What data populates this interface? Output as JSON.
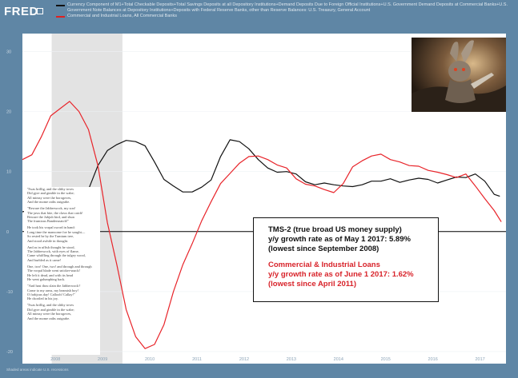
{
  "header": {
    "logo": "FRED",
    "legend": [
      {
        "label": "Currency Component of M1+Total Checkable Deposits+Total Savings Deposits at all Depository Institutions+Demand Deposits Due to Foreign Official Institutions+U.S. Government Demand Deposits at Commercial Banks+U.S. Government Note Balances at Depository Institutions+Deposits with Federal Reserve Banks, other than Reserve Balances: U.S. Treasury, General Account",
        "color": "#111111"
      },
      {
        "label": "Commercial and Industrial Loans, All Commercial Banks",
        "color": "#e02020"
      }
    ]
  },
  "footer": {
    "source": "Shaded areas indicate U.S. recessions"
  },
  "poem": [
    "'Twas brillig, and the slithy toves\nDid gyre and gimble in the wabe;\nAll mimsy were the borogoves,\nAnd the mome raths outgrabe.",
    "\"Beware the Jabberwock, my son!\nThe jaws that bite, the claws that catch!\nBeware the Jubjub bird, and shun\nThe frumious Bandersnatch!\"",
    "He took his vorpal sword in hand:\nLong time the manxome foe he sought—\nSo rested he by the Tumtum tree,\nAnd stood awhile in thought.",
    "And as in uffish thought he stood,\nThe Jabberwock, with eyes of flame,\nCame whiffling through the tulgey wood,\nAnd burbled as it came!",
    "One, two! One, two! and through and through\nThe vorpal blade went snicker-snack!\nHe left it dead, and with its head\nHe went galumphing back.",
    "\"And hast thou slain the Jabberwock?\nCome to my arms, my beamish boy!\nO frabjous day! Callooh! Callay!\"\nHe chortled in his joy.",
    "'Twas brillig, and the slithy toves\nDid gyre and gimble in the wabe;\nAll mimsy were the borogoves,\nAnd the mome raths outgrabe."
  ],
  "annotation": {
    "tms_lines": [
      "TMS-2 (true broad US money supply)",
      "y/y growth rate as of May 1 2017: 5.89%",
      "(lowest since September 2008)"
    ],
    "ci_lines": [
      "Commercial & Industrial Loans",
      "y/y growth rate as of June 1 2017: 1.62%",
      "(lowest since April 2011)"
    ]
  },
  "chart_data": {
    "type": "line",
    "title": "",
    "xlabel": "",
    "ylabel": "",
    "xlim": [
      2007.3,
      2017.55
    ],
    "ylim": [
      -22,
      33
    ],
    "y_ticks": [
      30,
      20,
      10,
      0,
      -10,
      -20
    ],
    "x_ticks": [
      2008,
      2009,
      2010,
      2011,
      2012,
      2013,
      2014,
      2015,
      2016,
      2017
    ],
    "recession": [
      2007.92,
      2009.42
    ],
    "zero_line": 0,
    "series": [
      {
        "name": "TMS-2",
        "color": "#111111",
        "x": [
          2007.3,
          2007.5,
          2007.7,
          2007.9,
          2008.1,
          2008.3,
          2008.5,
          2008.7,
          2008.9,
          2009.1,
          2009.3,
          2009.5,
          2009.7,
          2009.9,
          2010.1,
          2010.3,
          2010.5,
          2010.7,
          2010.9,
          2011.1,
          2011.3,
          2011.5,
          2011.7,
          2011.9,
          2012.1,
          2012.3,
          2012.5,
          2012.7,
          2012.9,
          2013.1,
          2013.3,
          2013.5,
          2013.7,
          2013.9,
          2014.1,
          2014.3,
          2014.5,
          2014.7,
          2014.9,
          2015.1,
          2015.3,
          2015.5,
          2015.7,
          2015.9,
          2016.1,
          2016.3,
          2016.5,
          2016.7,
          2016.9,
          2017.1,
          2017.3,
          2017.42
        ],
        "y": [
          3.3,
          3.6,
          4.0,
          4.3,
          3.6,
          3.9,
          4.6,
          7.0,
          11.0,
          13.5,
          14.5,
          15.2,
          15.0,
          14.3,
          11.6,
          8.7,
          7.6,
          6.6,
          6.6,
          7.4,
          8.6,
          12.5,
          15.3,
          15.0,
          13.8,
          12.0,
          10.6,
          9.9,
          10.0,
          9.6,
          8.3,
          7.8,
          8.1,
          7.8,
          7.6,
          7.5,
          7.8,
          8.4,
          8.4,
          8.8,
          8.2,
          8.6,
          8.9,
          8.7,
          8.1,
          8.6,
          9.1,
          9.0,
          9.6,
          8.4,
          6.2,
          5.89
        ]
      },
      {
        "name": "Commercial & Industrial Loans",
        "color": "#e8242a",
        "x": [
          2007.3,
          2007.5,
          2007.7,
          2007.9,
          2008.1,
          2008.3,
          2008.5,
          2008.7,
          2008.9,
          2009.1,
          2009.3,
          2009.5,
          2009.7,
          2009.9,
          2010.1,
          2010.3,
          2010.5,
          2010.7,
          2010.9,
          2011.1,
          2011.3,
          2011.5,
          2011.7,
          2011.9,
          2012.1,
          2012.3,
          2012.5,
          2012.7,
          2012.9,
          2013.1,
          2013.3,
          2013.5,
          2013.7,
          2013.9,
          2014.1,
          2014.3,
          2014.5,
          2014.7,
          2014.9,
          2015.1,
          2015.3,
          2015.5,
          2015.7,
          2015.9,
          2016.1,
          2016.3,
          2016.5,
          2016.7,
          2016.9,
          2017.1,
          2017.3,
          2017.45
        ],
        "y": [
          12.0,
          12.8,
          15.8,
          19.3,
          20.5,
          21.7,
          20.0,
          17.0,
          11.0,
          1.5,
          -5.5,
          -13.0,
          -17.5,
          -19.5,
          -18.8,
          -15.5,
          -10.0,
          -5.5,
          -2.0,
          1.8,
          5.0,
          8.0,
          9.7,
          11.4,
          12.5,
          12.6,
          12.0,
          11.1,
          10.6,
          8.8,
          7.9,
          7.6,
          7.0,
          6.5,
          8.0,
          10.8,
          11.8,
          12.6,
          12.9,
          12.0,
          11.6,
          11.0,
          10.9,
          10.2,
          9.9,
          9.5,
          9.0,
          9.6,
          7.6,
          5.5,
          3.5,
          1.62
        ]
      }
    ]
  }
}
